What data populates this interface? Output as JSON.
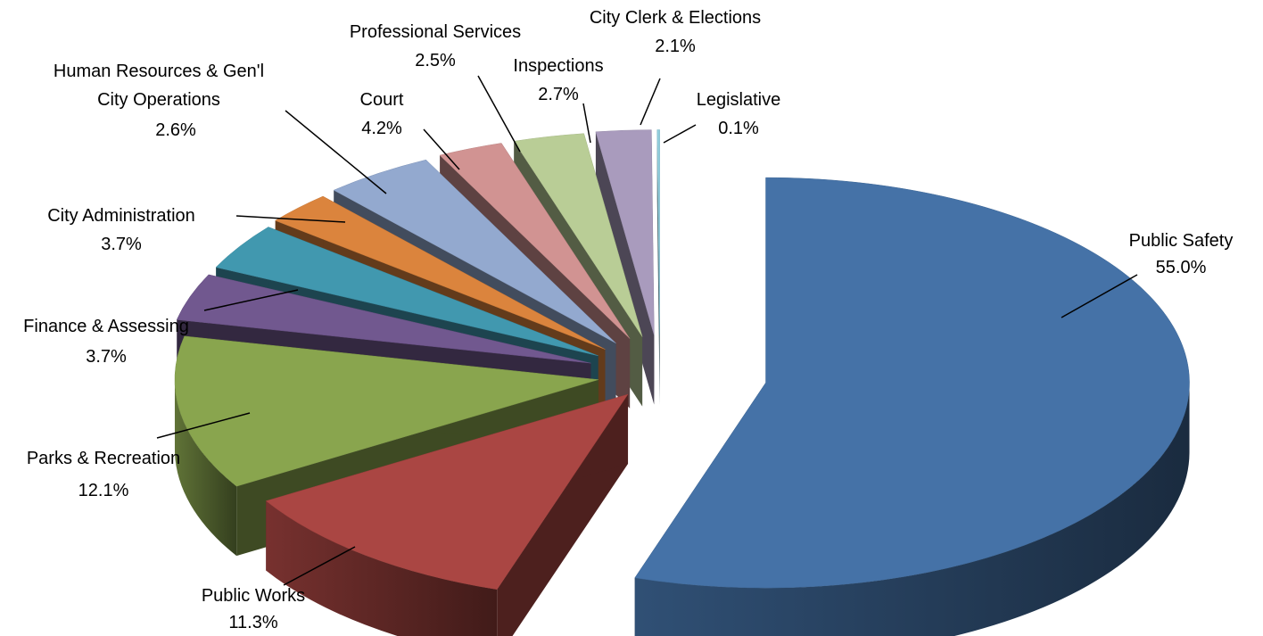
{
  "chart_data": {
    "type": "pie",
    "title": "",
    "slices": [
      {
        "label": "Public Safety",
        "value": 55.0,
        "value_label": "55.0%",
        "color": "#4572A7"
      },
      {
        "label": "Public Works",
        "value": 11.3,
        "value_label": "11.3%",
        "color": "#AA4643"
      },
      {
        "label": "Parks & Recreation",
        "value": 12.1,
        "value_label": "12.1%",
        "color": "#89A54E"
      },
      {
        "label": "Finance & Assessing",
        "value": 3.7,
        "value_label": "3.7%",
        "color": "#71588F"
      },
      {
        "label": "City Administration",
        "value": 3.7,
        "value_label": "3.7%",
        "color": "#4198AF"
      },
      {
        "label": "Human Resources & Gen'l City Operations",
        "value": 2.6,
        "value_label": "2.6%",
        "color": "#DB843D"
      },
      {
        "label": "Court",
        "value": 4.2,
        "value_label": "4.2%",
        "color": "#93A9CF"
      },
      {
        "label": "Professional Services",
        "value": 2.5,
        "value_label": "2.5%",
        "color": "#D19392"
      },
      {
        "label": "Inspections",
        "value": 2.7,
        "value_label": "2.7%",
        "color": "#B9CD96"
      },
      {
        "label": "City Clerk & Elections",
        "value": 2.1,
        "value_label": "2.1%",
        "color": "#A99BBD"
      },
      {
        "label": "Legislative",
        "value": 0.1,
        "value_label": "0.1%",
        "color": "#92CDDC"
      }
    ],
    "legend": "none",
    "data_labels": "outside with leader lines",
    "style": "3D exploded pie"
  }
}
